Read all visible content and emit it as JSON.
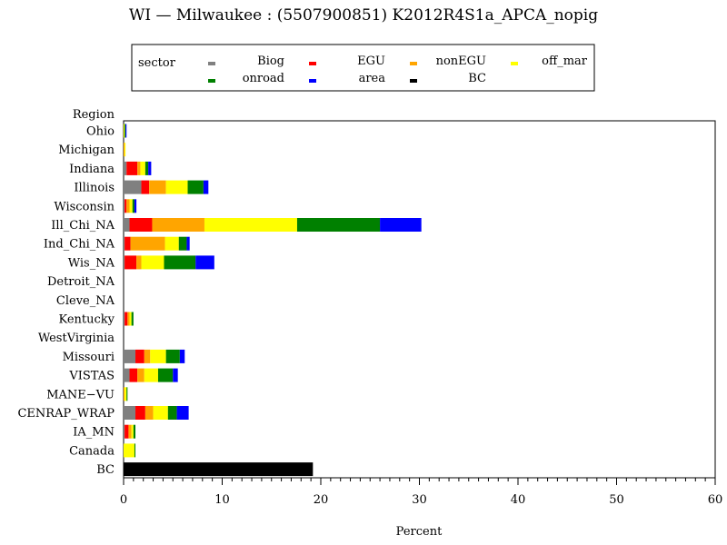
{
  "chart_data": {
    "type": "bar",
    "orientation": "horizontal",
    "stacked": true,
    "title": "WI — Milwaukee : (5507900851) K2012R4S1a_APCA_nopig",
    "xlabel": "Percent",
    "ylabel": "Region",
    "legend_title": "sector",
    "legend_position": "top",
    "xlim": [
      0,
      60
    ],
    "x_ticks": [
      0,
      10,
      20,
      30,
      40,
      50,
      60
    ],
    "grid": false,
    "categories": [
      "Ohio",
      "Michigan",
      "Indiana",
      "Illinois",
      "Wisconsin",
      "Ill_Chi_NA",
      "Ind_Chi_NA",
      "Wis_NA",
      "Detroit_NA",
      "Cleve_NA",
      "Kentucky",
      "WestVirginia",
      "Missouri",
      "VISTAS",
      "MANE−VU",
      "CENRAP_WRAP",
      "IA_MN",
      "Canada",
      "BC"
    ],
    "series": [
      {
        "name": "Biog",
        "color": "#808080",
        "values": [
          0.0,
          0.0,
          0.3,
          1.8,
          0.1,
          0.6,
          0.1,
          0.1,
          0,
          0,
          0.1,
          0,
          1.2,
          0.6,
          0.0,
          1.2,
          0.1,
          0.0,
          0
        ]
      },
      {
        "name": "EGU",
        "color": "#ff0000",
        "values": [
          0.0,
          0.0,
          1.1,
          0.8,
          0.2,
          2.3,
          0.6,
          1.2,
          0,
          0,
          0.3,
          0,
          0.9,
          0.8,
          0.0,
          1.0,
          0.4,
          0.0,
          0
        ]
      },
      {
        "name": "nonEGU",
        "color": "#ffa500",
        "values": [
          0.0,
          0.1,
          0.3,
          1.7,
          0.3,
          5.3,
          3.5,
          0.5,
          0,
          0,
          0.2,
          0,
          0.6,
          0.7,
          0.1,
          0.8,
          0.3,
          0.0,
          0
        ]
      },
      {
        "name": "off_mar",
        "color": "#ffff00",
        "values": [
          0.1,
          0.1,
          0.5,
          2.2,
          0.3,
          9.4,
          1.4,
          2.3,
          0,
          0,
          0.2,
          0,
          1.6,
          1.4,
          0.2,
          1.5,
          0.2,
          1.1,
          0
        ]
      },
      {
        "name": "onroad",
        "color": "#008000",
        "values": [
          0.1,
          0.0,
          0.3,
          1.6,
          0.2,
          8.4,
          0.8,
          3.2,
          0,
          0,
          0.2,
          0,
          1.4,
          1.5,
          0.1,
          0.9,
          0.2,
          0.1,
          0
        ]
      },
      {
        "name": "area",
        "color": "#0000ff",
        "values": [
          0.1,
          0.0,
          0.3,
          0.5,
          0.2,
          4.2,
          0.3,
          1.9,
          0,
          0,
          0.0,
          0,
          0.5,
          0.5,
          0.0,
          1.2,
          0.0,
          0.0,
          0
        ]
      },
      {
        "name": "BC",
        "color": "#000000",
        "values": [
          0,
          0,
          0,
          0,
          0,
          0,
          0,
          0,
          0,
          0,
          0,
          0,
          0,
          0,
          0,
          0,
          0,
          0,
          19.2
        ]
      }
    ]
  }
}
